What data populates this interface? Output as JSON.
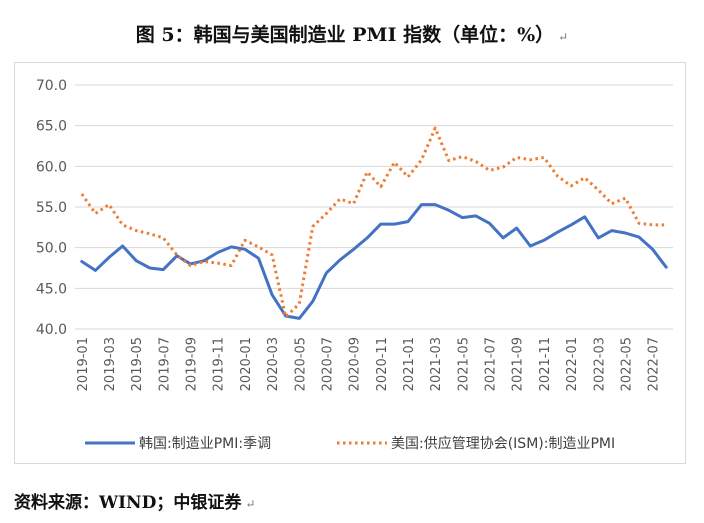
{
  "figure": {
    "title": "图 5：韩国与美国制造业 PMI 指数（单位：%）",
    "source": "资料来源：WIND；中银证券"
  },
  "chart_data": {
    "type": "line",
    "ylim": [
      40,
      70
    ],
    "yticks": [
      "40.0",
      "45.0",
      "50.0",
      "55.0",
      "60.0",
      "65.0",
      "70.0"
    ],
    "grid": true,
    "legend": "bottom",
    "x": [
      "2019-01",
      "2019-02",
      "2019-03",
      "2019-04",
      "2019-05",
      "2019-06",
      "2019-07",
      "2019-08",
      "2019-09",
      "2019-10",
      "2019-11",
      "2019-12",
      "2020-01",
      "2020-02",
      "2020-03",
      "2020-04",
      "2020-05",
      "2020-06",
      "2020-07",
      "2020-08",
      "2020-09",
      "2020-10",
      "2020-11",
      "2020-12",
      "2021-01",
      "2021-02",
      "2021-03",
      "2021-04",
      "2021-05",
      "2021-06",
      "2021-07",
      "2021-08",
      "2021-09",
      "2021-10",
      "2021-11",
      "2021-12",
      "2022-01",
      "2022-02",
      "2022-03",
      "2022-04",
      "2022-05",
      "2022-06",
      "2022-07",
      "2022-08"
    ],
    "xtick_labels": [
      "2019-01",
      "2019-03",
      "2019-05",
      "2019-07",
      "2019-09",
      "2019-11",
      "2020-01",
      "2020-03",
      "2020-05",
      "2020-07",
      "2020-09",
      "2020-11",
      "2021-01",
      "2021-03",
      "2021-05",
      "2021-07",
      "2021-09",
      "2021-11",
      "2022-01",
      "2022-03",
      "2022-05",
      "2022-07"
    ],
    "series": [
      {
        "name": "韩国:制造业PMI:季调",
        "color": "#4472C4",
        "style": "solid",
        "values": [
          48.3,
          47.2,
          48.8,
          50.2,
          48.4,
          47.5,
          47.3,
          49.0,
          48.0,
          48.4,
          49.4,
          50.1,
          49.8,
          48.7,
          44.2,
          41.6,
          41.3,
          43.4,
          46.9,
          48.5,
          49.8,
          51.2,
          52.9,
          52.9,
          53.2,
          55.3,
          55.3,
          54.6,
          53.7,
          53.9,
          53.0,
          51.2,
          52.4,
          50.2,
          50.9,
          51.9,
          52.8,
          53.8,
          51.2,
          52.1,
          51.8,
          51.3,
          49.8,
          47.6
        ]
      },
      {
        "name": "美国:供应管理协会(ISM):制造业PMI",
        "color": "#ED7D31",
        "style": "dotted",
        "values": [
          56.6,
          54.2,
          55.3,
          52.8,
          52.1,
          51.7,
          51.2,
          49.1,
          47.8,
          48.3,
          48.1,
          47.8,
          50.9,
          50.1,
          49.1,
          41.5,
          43.1,
          52.6,
          54.2,
          56.0,
          55.4,
          59.3,
          57.5,
          60.5,
          58.7,
          60.8,
          64.7,
          60.7,
          61.2,
          60.6,
          59.5,
          59.9,
          61.1,
          60.8,
          61.1,
          58.8,
          57.6,
          58.6,
          57.1,
          55.4,
          56.1,
          53.0,
          52.8,
          52.8
        ]
      }
    ]
  }
}
